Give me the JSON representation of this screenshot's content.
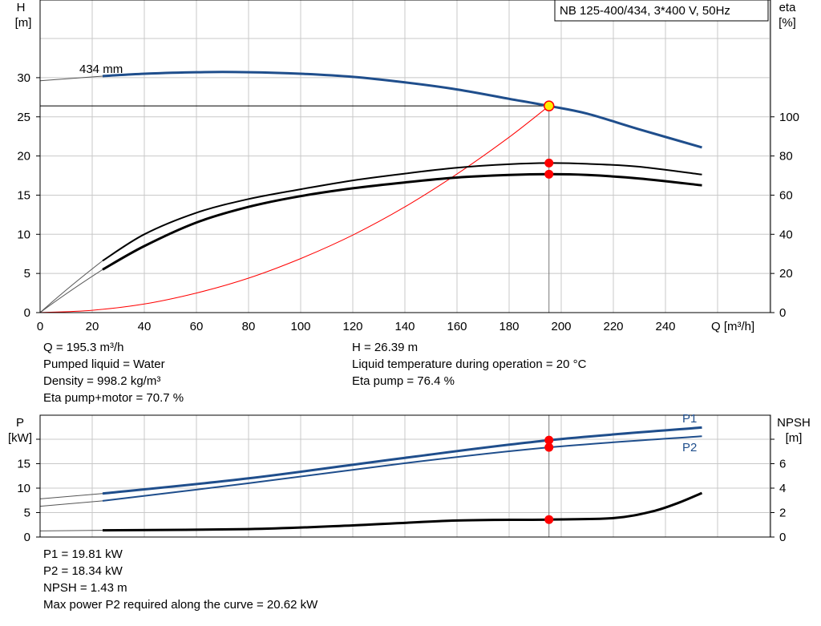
{
  "title_box": "NB 125-400/434, 3*400 V, 50Hz",
  "top_chart": {
    "left_axis_label": [
      "H",
      "[m]"
    ],
    "right_axis_label": [
      "eta",
      "[%]"
    ],
    "x_axis_label": "Q [m³/h]",
    "impeller_label": "434 mm"
  },
  "bottom_chart": {
    "left_axis_label": [
      "P",
      "[kW]"
    ],
    "right_axis_label": [
      "NPSH",
      "[m]"
    ],
    "p1_label": "P1",
    "p2_label": "P2"
  },
  "info_top": {
    "q": "Q = 195.3 m³/h",
    "liquid": "Pumped liquid = Water",
    "density": "Density = 998.2 kg/m³",
    "eta_pm": "Eta pump+motor = 70.7 %",
    "h": "H = 26.39 m",
    "temp": "Liquid temperature during operation = 20 °C",
    "eta_pump": "Eta pump = 76.4 %"
  },
  "info_bottom": {
    "p1": "P1 = 19.81 kW",
    "p2": "P2 = 18.34 kW",
    "npsh": "NPSH = 1.43 m",
    "maxp2": "Max power P2 required along the curve = 20.62 kW"
  },
  "colors": {
    "head": "#1f4e8c",
    "eta": "#000000",
    "system": "#ff0000",
    "marker": "#ff0000",
    "duty_marker": "#ffee00",
    "grid": "#c8c8c8"
  },
  "chart_data": [
    {
      "type": "line",
      "title": "NB 125-400/434, 3*400 V, 50Hz",
      "xlabel": "Q [m³/h]",
      "ylabel": "H [m]",
      "y2label": "eta [%]",
      "xlim": [
        0,
        280
      ],
      "ylim": [
        0,
        40
      ],
      "y2lim": [
        0,
        160
      ],
      "x_ticks": [
        0,
        20,
        40,
        60,
        80,
        100,
        120,
        140,
        160,
        180,
        200,
        220,
        240
      ],
      "y_ticks": [
        0,
        5,
        10,
        15,
        20,
        25,
        30
      ],
      "y2_ticks": [
        0,
        20,
        40,
        60,
        80,
        100
      ],
      "grid": true,
      "duty_point": {
        "q": 195.3,
        "h": 26.39,
        "eta_pump": 76.4,
        "eta_pump_motor": 70.7
      },
      "series": [
        {
          "name": "434 mm",
          "axis": "left",
          "x": [
            24,
            40,
            60,
            80,
            100,
            120,
            140,
            160,
            180,
            195.3,
            210,
            230,
            254
          ],
          "y": [
            30.2,
            30.5,
            30.7,
            30.7,
            30.5,
            30.1,
            29.4,
            28.5,
            27.3,
            26.39,
            25.4,
            23.4,
            21.1
          ]
        },
        {
          "name": "Eta pump",
          "axis": "right",
          "x": [
            24,
            40,
            60,
            80,
            100,
            120,
            140,
            160,
            180,
            195.3,
            210,
            230,
            254
          ],
          "y": [
            26.5,
            40,
            51,
            58,
            63,
            67.5,
            71,
            74,
            75.8,
            76.4,
            76,
            74.5,
            70.5
          ]
        },
        {
          "name": "Eta pump+motor",
          "axis": "right",
          "x": [
            24,
            40,
            60,
            80,
            100,
            120,
            140,
            160,
            180,
            195.3,
            210,
            230,
            254
          ],
          "y": [
            22,
            34,
            46,
            54,
            59.5,
            63.5,
            66.5,
            69,
            70.3,
            70.7,
            70.3,
            68.5,
            65
          ]
        },
        {
          "name": "System curve",
          "axis": "left",
          "x": [
            0,
            20,
            40,
            60,
            80,
            100,
            120,
            140,
            160,
            180,
            195.3
          ],
          "y": [
            0,
            0.3,
            1.1,
            2.5,
            4.4,
            6.9,
            9.9,
            13.5,
            17.7,
            22.4,
            26.39
          ]
        }
      ]
    },
    {
      "type": "line",
      "ylabel": "P [kW]",
      "y2label": "NPSH [m]",
      "xlim": [
        0,
        280
      ],
      "ylim": [
        0,
        25
      ],
      "y2lim": [
        0,
        10
      ],
      "y_ticks": [
        0,
        5,
        10,
        15
      ],
      "y2_ticks": [
        0,
        2,
        4,
        6
      ],
      "grid": true,
      "series": [
        {
          "name": "P1",
          "axis": "left",
          "x": [
            24,
            80,
            140,
            195.3,
            254
          ],
          "y": [
            8.9,
            12.0,
            16.2,
            19.81,
            22.4
          ]
        },
        {
          "name": "P2",
          "axis": "left",
          "x": [
            24,
            80,
            140,
            195.3,
            254
          ],
          "y": [
            7.4,
            11.0,
            15.1,
            18.34,
            20.62
          ]
        },
        {
          "name": "NPSH",
          "axis": "right",
          "x": [
            24,
            80,
            120,
            160,
            195.3,
            220,
            235,
            245,
            254
          ],
          "y": [
            0.55,
            0.65,
            0.95,
            1.35,
            1.43,
            1.55,
            2.1,
            2.8,
            3.6
          ]
        }
      ]
    }
  ]
}
